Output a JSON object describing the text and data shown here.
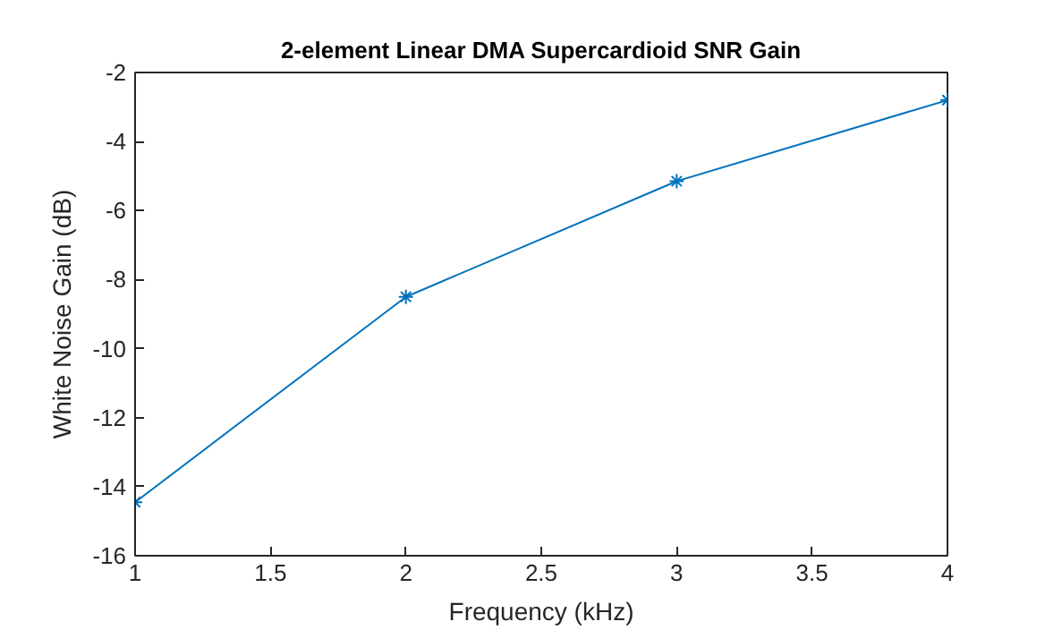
{
  "chart_data": {
    "type": "line",
    "title": "2-element Linear DMA Supercardioid SNR Gain",
    "xlabel": "Frequency (kHz)",
    "ylabel": "White Noise Gain (dB)",
    "x": [
      1,
      2,
      3,
      4
    ],
    "series": [
      {
        "color": "#0072bd",
        "values": [
          -14.45,
          -8.5,
          -5.15,
          -2.8
        ]
      }
    ],
    "xlim": [
      1,
      4
    ],
    "xticks": [
      1,
      1.5,
      2,
      2.5,
      3,
      3.5,
      4
    ],
    "ylim": [
      -16,
      -2
    ],
    "yticks": [
      -16,
      -14,
      -12,
      -10,
      -8,
      -6,
      -4,
      -2
    ],
    "grid": false,
    "marker": "cross",
    "line_style": "solid"
  }
}
